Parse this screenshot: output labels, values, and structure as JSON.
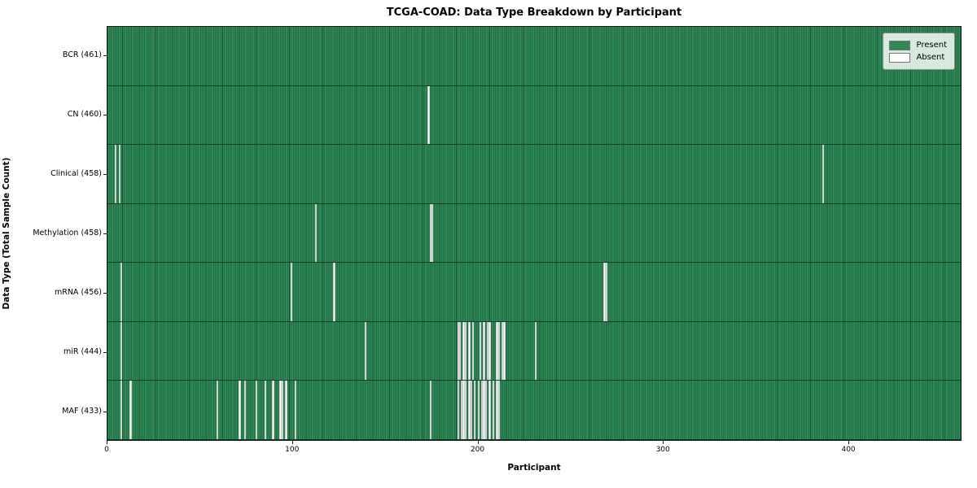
{
  "title": "TCGA-COAD: Data Type Breakdown by Participant",
  "xlabel": "Participant",
  "ylabel": "Data Type (Total Sample Count)",
  "legend": {
    "present_label": "Present",
    "absent_label": "Absent"
  },
  "colors": {
    "present": "#2e8b57",
    "absent": "#ffffff",
    "cell_edge": "#14321f",
    "spine": "#151515"
  },
  "x_ticks": [
    0,
    100,
    200,
    300,
    400
  ],
  "total_participants": 461,
  "chart_data": {
    "type": "heatmap",
    "xlim": [
      0,
      461
    ],
    "legend_position": "upper right",
    "title": "TCGA-COAD: Data Type Breakdown by Participant",
    "xlabel": "Participant",
    "ylabel": "Data Type (Total Sample Count)",
    "value_encoding": {
      "present": 1,
      "absent": 0
    },
    "rows": [
      {
        "name": "BCR",
        "label": "BCR (461)",
        "present_count": 461,
        "absent_count": 0,
        "absent_participants": []
      },
      {
        "name": "CN",
        "label": "CN (460)",
        "present_count": 460,
        "absent_count": 1,
        "absent_participants": [
          173
        ]
      },
      {
        "name": "Clinical",
        "label": "Clinical (458)",
        "present_count": 458,
        "absent_count": 3,
        "absent_participants": [
          4,
          6,
          386
        ]
      },
      {
        "name": "Methylation",
        "label": "Methylation (458)",
        "present_count": 458,
        "absent_count": 3,
        "absent_participants": [
          112,
          174,
          175
        ]
      },
      {
        "name": "mRNA",
        "label": "mRNA (456)",
        "present_count": 456,
        "absent_count": 5,
        "absent_participants": [
          7,
          99,
          122,
          268,
          269
        ]
      },
      {
        "name": "miR",
        "label": "miR (444)",
        "present_count": 444,
        "absent_count": 17,
        "absent_participants": [
          7,
          139,
          189,
          190,
          192,
          193,
          195,
          197,
          201,
          203,
          205,
          206,
          210,
          211,
          213,
          214,
          231
        ]
      },
      {
        "name": "MAF",
        "label": "MAF (433)",
        "present_count": 433,
        "absent_count": 28,
        "absent_participants": [
          7,
          12,
          59,
          71,
          74,
          80,
          85,
          89,
          93,
          94,
          96,
          101,
          174,
          189,
          191,
          192,
          193,
          195,
          196,
          198,
          200,
          202,
          203,
          204,
          206,
          208,
          210,
          211
        ]
      }
    ]
  }
}
